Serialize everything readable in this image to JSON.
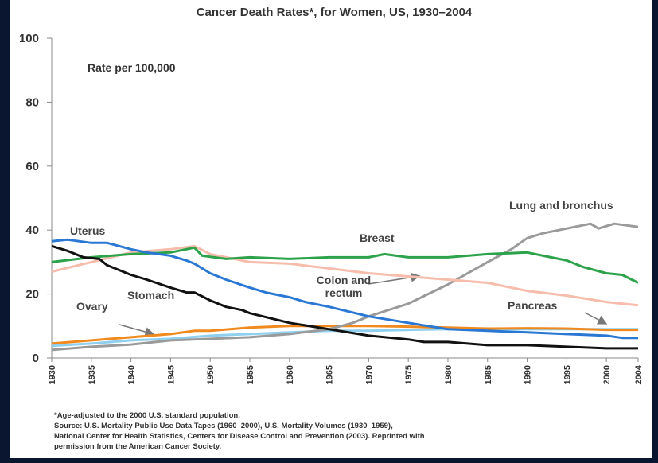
{
  "chart_data": {
    "type": "line",
    "title": "Cancer Death Rates*, for Women, US, 1930–2004",
    "y_axis_label": "Rate per 100,000",
    "xlim": [
      1930,
      2004
    ],
    "ylim": [
      0,
      100
    ],
    "xticks": [
      1930,
      1935,
      1940,
      1945,
      1950,
      1955,
      1960,
      1965,
      1970,
      1975,
      1980,
      1985,
      1990,
      1995,
      2000,
      2004
    ],
    "yticks": [
      0,
      20,
      40,
      60,
      80,
      100
    ],
    "series": [
      {
        "name": "Uterus",
        "color": "#2a78d4",
        "x": [
          1930,
          1932,
          1935,
          1937,
          1940,
          1942,
          1945,
          1947,
          1948,
          1950,
          1952,
          1955,
          1957,
          1960,
          1962,
          1965,
          1970,
          1975,
          1980,
          1985,
          1990,
          1995,
          2000,
          2002,
          2004
        ],
        "values": [
          36.5,
          37,
          36,
          36,
          34,
          33,
          32,
          30.5,
          29.5,
          26.5,
          24.5,
          22,
          20.5,
          19,
          17.5,
          16,
          13,
          11,
          9,
          8.5,
          8,
          7.5,
          7,
          6.3,
          6.3
        ]
      },
      {
        "name": "Stomach",
        "color": "#111111",
        "x": [
          1930,
          1932,
          1934,
          1936,
          1937,
          1940,
          1942,
          1945,
          1947,
          1948,
          1950,
          1952,
          1954,
          1955,
          1960,
          1965,
          1970,
          1975,
          1977,
          1980,
          1985,
          1990,
          1995,
          2000,
          2004
        ],
        "values": [
          35,
          33.5,
          31.5,
          31,
          29,
          26,
          24.5,
          22,
          20.5,
          20.5,
          18,
          16,
          15,
          14,
          11,
          9,
          7,
          5.8,
          5,
          5,
          4,
          4,
          3.5,
          3,
          3
        ]
      },
      {
        "name": "Breast",
        "color": "#2ca34a",
        "x": [
          1930,
          1935,
          1940,
          1945,
          1948,
          1949,
          1952,
          1955,
          1960,
          1965,
          1970,
          1972,
          1975,
          1980,
          1985,
          1990,
          1993,
          1995,
          1997,
          2000,
          2002,
          2004
        ],
        "values": [
          30,
          31.5,
          32.5,
          33,
          34.5,
          32,
          31,
          31.5,
          31,
          31.5,
          31.5,
          32.5,
          31.5,
          31.5,
          32.5,
          33,
          31.5,
          30.5,
          28.5,
          26.5,
          26,
          23.5
        ]
      },
      {
        "name": "Colon and rectum",
        "color": "#f7bdac",
        "x": [
          1930,
          1935,
          1940,
          1945,
          1948,
          1950,
          1955,
          1960,
          1965,
          1970,
          1975,
          1980,
          1985,
          1990,
          1995,
          2000,
          2004
        ],
        "values": [
          27,
          30,
          33,
          34,
          35,
          32.5,
          30,
          29.5,
          28,
          26.5,
          25.5,
          24.5,
          23.5,
          21,
          19.5,
          17.5,
          16.5
        ]
      },
      {
        "name": "Lung and bronchus",
        "color": "#9a9a9a",
        "x": [
          1930,
          1935,
          1940,
          1945,
          1950,
          1955,
          1960,
          1965,
          1968,
          1970,
          1975,
          1980,
          1985,
          1988,
          1990,
          1992,
          1995,
          1998,
          1999,
          2001,
          2004
        ],
        "values": [
          2.5,
          3.5,
          4.2,
          5.5,
          6,
          6.5,
          7.5,
          9,
          11,
          13,
          17,
          23,
          30,
          34,
          37.5,
          39,
          40.5,
          42,
          40.5,
          42,
          41
        ]
      },
      {
        "name": "Ovary",
        "color": "#f08a1e",
        "x": [
          1930,
          1935,
          1940,
          1945,
          1948,
          1950,
          1955,
          1960,
          1965,
          1970,
          1975,
          1980,
          1985,
          1990,
          1995,
          2000,
          2004
        ],
        "values": [
          4.5,
          5.5,
          6.5,
          7.5,
          8.5,
          8.5,
          9.5,
          10,
          10,
          10,
          9.8,
          9.5,
          9.2,
          9.3,
          9.2,
          8.8,
          8.8
        ]
      },
      {
        "name": "Pancreas",
        "color": "#8fd0f0",
        "x": [
          1930,
          1935,
          1940,
          1945,
          1950,
          1955,
          1960,
          1965,
          1970,
          1975,
          1980,
          1985,
          1990,
          1995,
          2000,
          2004
        ],
        "values": [
          3.8,
          4.5,
          5.5,
          6,
          7,
          7.5,
          8,
          8.5,
          8.5,
          8.8,
          9,
          9,
          9,
          9,
          9,
          9
        ]
      }
    ],
    "notes": [
      "*Age-adjusted to the 2000 U.S. standard population.",
      "Source:  U.S. Mortality Public Use Data Tapes (1960–2000), U.S. Mortality Volumes (1930–1959),",
      "National Center for Health Statistics, Centers for Disease Control and Prevention (2003). Reprinted with",
      "permission from the American Cancer Society."
    ]
  }
}
